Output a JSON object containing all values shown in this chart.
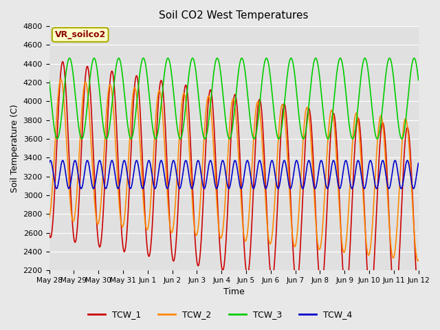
{
  "title": "Soil CO2 West Temperatures",
  "xlabel": "Time",
  "ylabel": "Soil Temperature (C)",
  "ylim": [
    2200,
    4800
  ],
  "yticks": [
    2200,
    2400,
    2600,
    2800,
    3000,
    3200,
    3400,
    3600,
    3800,
    4000,
    4200,
    4400,
    4600,
    4800
  ],
  "xtick_labels": [
    "May 28",
    "May 29",
    "May 30",
    "May 31",
    "Jun 1",
    "Jun 2",
    "Jun 3",
    "Jun 4",
    "Jun 5",
    "Jun 6",
    "Jun 7",
    "Jun 8",
    "Jun 9",
    "Jun 10",
    "Jun 11",
    "Jun 12"
  ],
  "series": {
    "TCW_1": {
      "color": "#cc0000"
    },
    "TCW_2": {
      "color": "#ff8800"
    },
    "TCW_3": {
      "color": "#00cc00"
    },
    "TCW_4": {
      "color": "#0000cc"
    }
  },
  "annotation_text": "VR_soilco2",
  "plot_bg_color": "#e0e0e0",
  "fig_bg_color": "#e8e8e8",
  "legend_entries": [
    "TCW_1",
    "TCW_2",
    "TCW_3",
    "TCW_4"
  ],
  "legend_colors": [
    "#cc0000",
    "#ff8800",
    "#00cc00",
    "#0000cc"
  ]
}
